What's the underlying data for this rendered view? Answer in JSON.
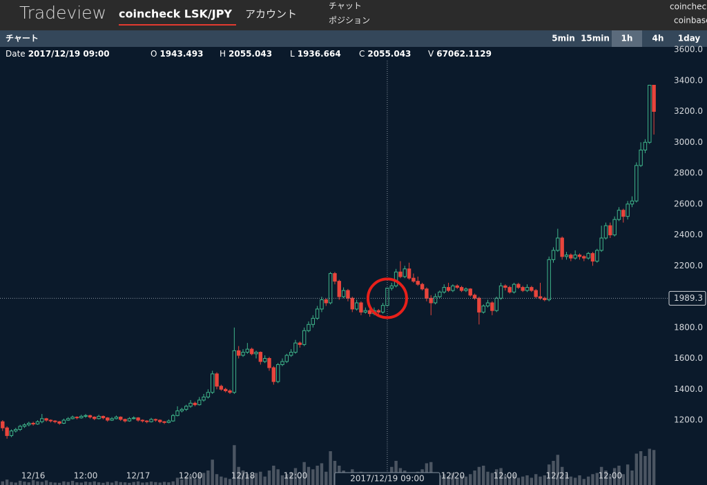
{
  "header": {
    "logo": "Tradeview",
    "tabs": [
      "coincheck LSK/JPY",
      "アカウント"
    ],
    "menu": [
      "チャット",
      "ポジション"
    ],
    "right": [
      "coincheck",
      "coinbase"
    ]
  },
  "toolbar": {
    "title": "チャート",
    "intervals": [
      "5min",
      "15min",
      "1h",
      "4h",
      "1day"
    ],
    "active": 2
  },
  "info": {
    "date_label": "Date",
    "date": "2017/12/19 09:00",
    "open_label": "O",
    "open": 1943.493,
    "high_label": "H",
    "high": 2055.043,
    "low_label": "L",
    "low": 1936.664,
    "close_label": "C",
    "close": 2055.043,
    "volume_label": "V",
    "volume": 67062.1129
  },
  "chart_data": {
    "type": "candlestick",
    "up_color": "#3fb68b",
    "down_color": "#e8453c",
    "volume_color": "#4b5562",
    "xlim": [
      -0.6,
      152.3
    ],
    "xticks": [
      {
        "value": 7,
        "label": "12/16"
      },
      {
        "value": 19,
        "label": "12:00"
      },
      {
        "value": 31,
        "label": "12/17"
      },
      {
        "value": 43,
        "label": "12:00"
      },
      {
        "value": 55,
        "label": "12/18"
      },
      {
        "value": 67,
        "label": "12:00"
      },
      {
        "value": 103,
        "label": "12/20"
      },
      {
        "value": 115,
        "label": "12:00"
      },
      {
        "value": 127,
        "label": "12/21"
      },
      {
        "value": 139,
        "label": "12:00"
      }
    ],
    "ylim": [
      780,
      3618
    ],
    "yticks": [
      {
        "value": 1200,
        "label": "1200.0"
      },
      {
        "value": 1400,
        "label": "1400.0"
      },
      {
        "value": 1600,
        "label": "1600.0"
      },
      {
        "value": 1800,
        "label": "1800.0"
      },
      {
        "value": 2000,
        "label": "2000.0"
      },
      {
        "value": 2200,
        "label": "2200.0"
      },
      {
        "value": 2400,
        "label": "2400.0"
      },
      {
        "value": 2600,
        "label": "2600.0"
      },
      {
        "value": 2800,
        "label": "2800.0"
      },
      {
        "value": 3000,
        "label": "3000.0"
      },
      {
        "value": 3200,
        "label": "3200.0"
      },
      {
        "value": 3400,
        "label": "3400.0"
      },
      {
        "value": 3600,
        "label": "3600.0"
      }
    ],
    "volume_lim": [
      0,
      400000
    ],
    "cursor_price": 1989.3,
    "open": [
      1190,
      1150,
      1100,
      1130,
      1140,
      1160,
      1170,
      1180,
      1175,
      1190,
      1210,
      1200,
      1195,
      1190,
      1180,
      1200,
      1210,
      1220,
      1215,
      1225,
      1230,
      1220,
      1210,
      1225,
      1215,
      1200,
      1210,
      1220,
      1205,
      1195,
      1210,
      1215,
      1200,
      1195,
      1190,
      1205,
      1200,
      1190,
      1185,
      1195,
      1230,
      1260,
      1270,
      1290,
      1310,
      1300,
      1330,
      1350,
      1380,
      1500,
      1420,
      1400,
      1390,
      1380,
      1650,
      1620,
      1640,
      1660,
      1630,
      1640,
      1580,
      1600,
      1540,
      1450,
      1560,
      1580,
      1620,
      1640,
      1700,
      1690,
      1780,
      1820,
      1860,
      1920,
      1980,
      1960,
      2150,
      2100,
      2000,
      2040,
      1990,
      1920,
      1960,
      1900,
      1910,
      1890,
      1910,
      1900,
      1943.493,
      2055,
      2070,
      2160,
      2130,
      2180,
      2120,
      2100,
      2080,
      2050,
      1990,
      1960,
      2000,
      2030,
      2060,
      2040,
      2070,
      2060,
      2040,
      2050,
      2010,
      1990,
      1900,
      1940,
      1960,
      1910,
      1990,
      2070,
      2060,
      2030,
      2080,
      2060,
      2040,
      2060,
      2040,
      2000,
      1990,
      1980,
      2240,
      2300,
      2380,
      2260,
      2270,
      2250,
      2270,
      2260,
      2250,
      2280,
      2230,
      2300,
      2380,
      2460,
      2400,
      2500,
      2560,
      2520,
      2600,
      2620,
      2850,
      2950,
      3000,
      3370
    ],
    "high": [
      1200,
      1160,
      1140,
      1150,
      1170,
      1180,
      1190,
      1190,
      1200,
      1240,
      1215,
      1205,
      1200,
      1195,
      1210,
      1220,
      1230,
      1225,
      1235,
      1240,
      1235,
      1225,
      1235,
      1230,
      1220,
      1220,
      1230,
      1225,
      1210,
      1220,
      1225,
      1220,
      1205,
      1200,
      1215,
      1210,
      1205,
      1195,
      1205,
      1240,
      1290,
      1280,
      1300,
      1330,
      1320,
      1350,
      1370,
      1400,
      1520,
      1510,
      1430,
      1410,
      1400,
      1800,
      1680,
      1660,
      1700,
      1670,
      1650,
      1645,
      1620,
      1610,
      1550,
      1570,
      1600,
      1630,
      1660,
      1720,
      1710,
      1800,
      1840,
      1880,
      1940,
      2000,
      1990,
      2160,
      2160,
      2110,
      2060,
      2050,
      2000,
      1980,
      1970,
      1930,
      1920,
      1930,
      1920,
      1960,
      2055.043,
      2090,
      2180,
      2230,
      2200,
      2220,
      2150,
      2130,
      2090,
      2060,
      2010,
      2020,
      2040,
      2080,
      2090,
      2080,
      2080,
      2070,
      2060,
      2055,
      2020,
      2000,
      1950,
      1980,
      1970,
      2000,
      2090,
      2080,
      2070,
      2090,
      2090,
      2070,
      2080,
      2070,
      2050,
      2090,
      2000,
      2260,
      2320,
      2440,
      2390,
      2290,
      2280,
      2300,
      2280,
      2270,
      2290,
      2290,
      2310,
      2460,
      2480,
      2480,
      2520,
      2580,
      2570,
      2620,
      2650,
      2870,
      3000,
      3020,
      3370,
      3370
    ],
    "low": [
      1130,
      1080,
      1090,
      1120,
      1130,
      1150,
      1160,
      1165,
      1170,
      1180,
      1190,
      1185,
      1180,
      1170,
      1175,
      1195,
      1205,
      1205,
      1210,
      1215,
      1210,
      1200,
      1205,
      1205,
      1190,
      1195,
      1205,
      1195,
      1185,
      1190,
      1205,
      1190,
      1185,
      1180,
      1185,
      1190,
      1180,
      1175,
      1180,
      1190,
      1225,
      1250,
      1260,
      1280,
      1290,
      1295,
      1320,
      1340,
      1370,
      1400,
      1390,
      1380,
      1370,
      1370,
      1600,
      1610,
      1630,
      1620,
      1600,
      1560,
      1570,
      1520,
      1430,
      1440,
      1550,
      1570,
      1610,
      1630,
      1670,
      1680,
      1770,
      1800,
      1850,
      1900,
      1940,
      1950,
      2080,
      1980,
      1990,
      1970,
      1900,
      1910,
      1880,
      1890,
      1870,
      1880,
      1880,
      1890,
      1936.664,
      2040,
      2060,
      2120,
      2120,
      2110,
      2090,
      2070,
      2040,
      1970,
      1880,
      1950,
      1990,
      2020,
      2030,
      2030,
      2050,
      2030,
      2030,
      2000,
      1980,
      1820,
      1890,
      1930,
      1880,
      1900,
      1980,
      2040,
      2020,
      2020,
      2050,
      2030,
      2030,
      2030,
      1990,
      1980,
      1970,
      1970,
      2220,
      2290,
      2240,
      2240,
      2230,
      2240,
      2240,
      2230,
      2240,
      2200,
      2220,
      2290,
      2370,
      2380,
      2390,
      2490,
      2480,
      2500,
      2580,
      2610,
      2840,
      2930,
      2990,
      3050
    ],
    "close": [
      1150,
      1100,
      1130,
      1140,
      1160,
      1170,
      1180,
      1175,
      1190,
      1210,
      1200,
      1195,
      1190,
      1180,
      1200,
      1210,
      1220,
      1215,
      1225,
      1230,
      1220,
      1210,
      1225,
      1215,
      1200,
      1210,
      1220,
      1205,
      1195,
      1210,
      1215,
      1200,
      1195,
      1190,
      1205,
      1200,
      1190,
      1185,
      1195,
      1230,
      1260,
      1270,
      1290,
      1310,
      1300,
      1330,
      1350,
      1380,
      1500,
      1420,
      1400,
      1390,
      1380,
      1650,
      1620,
      1640,
      1660,
      1630,
      1640,
      1580,
      1600,
      1540,
      1450,
      1560,
      1580,
      1620,
      1640,
      1700,
      1690,
      1780,
      1820,
      1860,
      1920,
      1980,
      1960,
      2150,
      2100,
      2000,
      2040,
      1990,
      1920,
      1960,
      1900,
      1910,
      1890,
      1910,
      1900,
      1943.493,
      2055.043,
      2070,
      2160,
      2130,
      2180,
      2120,
      2100,
      2080,
      2050,
      1990,
      1960,
      2000,
      2030,
      2060,
      2040,
      2070,
      2060,
      2040,
      2050,
      2010,
      1990,
      1900,
      1940,
      1960,
      1910,
      1990,
      2070,
      2060,
      2030,
      2080,
      2060,
      2040,
      2060,
      2040,
      2000,
      1990,
      1980,
      2240,
      2300,
      2380,
      2260,
      2270,
      2250,
      2270,
      2260,
      2250,
      2280,
      2230,
      2300,
      2380,
      2460,
      2400,
      2500,
      2560,
      2520,
      2600,
      2620,
      2850,
      2950,
      3000,
      3370,
      3200
    ],
    "volume": [
      30000,
      45000,
      25000,
      20000,
      35000,
      28000,
      22000,
      40000,
      30000,
      26000,
      38000,
      24000,
      20000,
      18000,
      30000,
      25000,
      35000,
      22000,
      20000,
      28000,
      24000,
      30000,
      22000,
      18000,
      26000,
      20000,
      32000,
      24000,
      22000,
      18000,
      25000,
      30000,
      20000,
      22000,
      28000,
      24000,
      20000,
      26000,
      22000,
      30000,
      60000,
      45000,
      70000,
      80000,
      50000,
      90000,
      100000,
      120000,
      210000,
      90000,
      70000,
      60000,
      50000,
      330000,
      150000,
      120000,
      90000,
      80000,
      100000,
      110000,
      70000,
      120000,
      160000,
      130000,
      80000,
      90000,
      100000,
      140000,
      70000,
      190000,
      150000,
      130000,
      160000,
      180000,
      110000,
      280000,
      200000,
      160000,
      120000,
      100000,
      130000,
      90000,
      110000,
      80000,
      100000,
      70000,
      90000,
      80000,
      67062.1129,
      150000,
      200000,
      140000,
      120000,
      100000,
      90000,
      110000,
      130000,
      180000,
      190000,
      100000,
      80000,
      90000,
      70000,
      100000,
      60000,
      80000,
      70000,
      90000,
      120000,
      150000,
      160000,
      110000,
      100000,
      130000,
      140000,
      80000,
      70000,
      90000,
      60000,
      70000,
      80000,
      60000,
      90000,
      70000,
      80000,
      170000,
      200000,
      250000,
      150000,
      90000,
      70000,
      60000,
      80000,
      50000,
      70000,
      90000,
      100000,
      150000,
      120000,
      80000,
      140000,
      160000,
      90000,
      170000,
      120000,
      260000,
      280000,
      240000,
      300000,
      290000
    ]
  }
}
